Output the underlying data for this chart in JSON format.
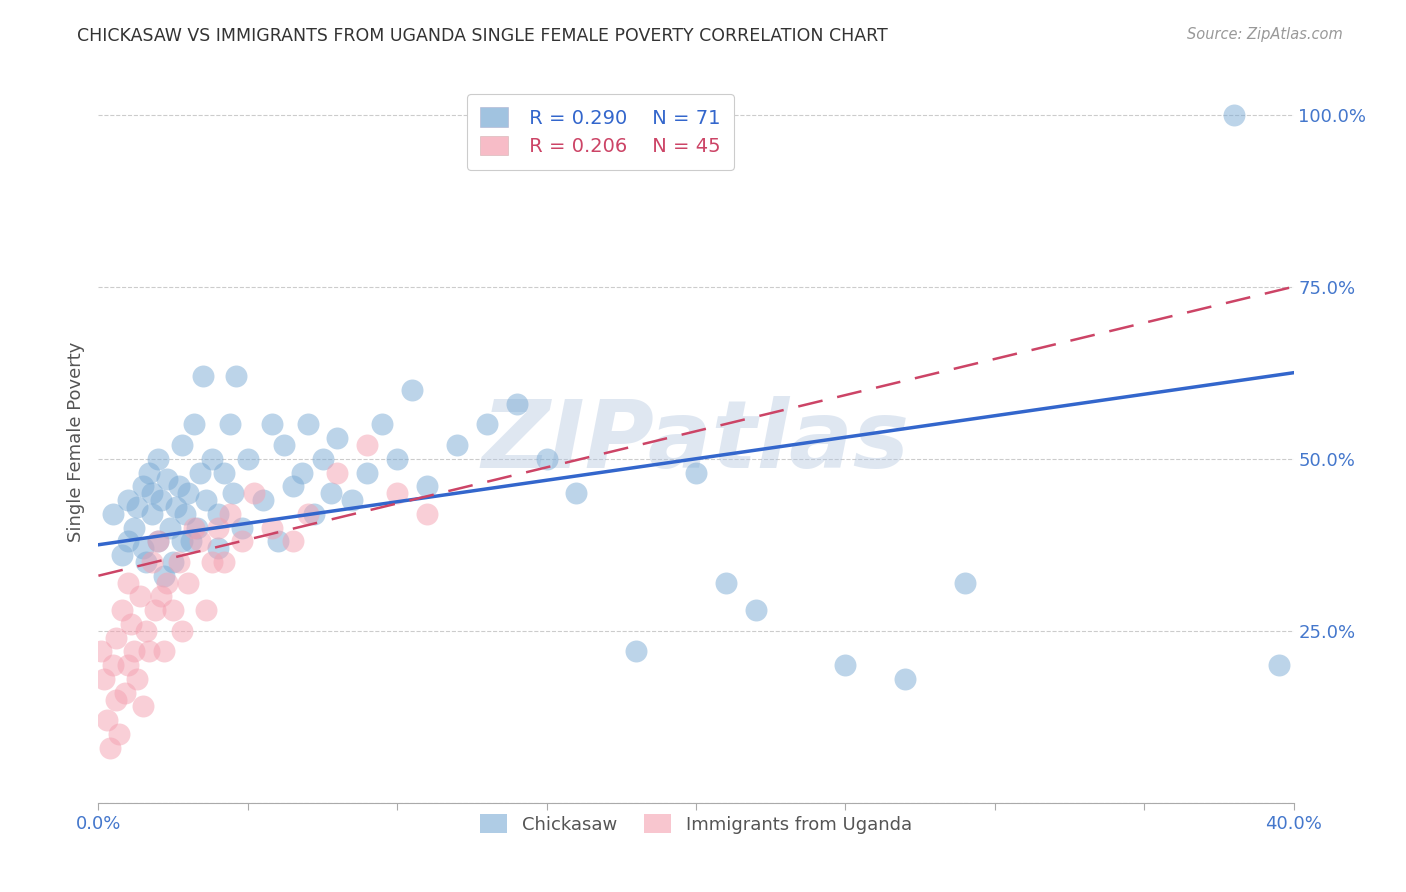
{
  "title": "CHICKASAW VS IMMIGRANTS FROM UGANDA SINGLE FEMALE POVERTY CORRELATION CHART",
  "source": "Source: ZipAtlas.com",
  "ylabel": "Single Female Poverty",
  "xlim": [
    0.0,
    0.4
  ],
  "ylim": [
    0.0,
    1.05
  ],
  "ytick_positions": [
    0.0,
    0.25,
    0.5,
    0.75,
    1.0
  ],
  "ytick_labels": [
    "",
    "25.0%",
    "50.0%",
    "75.0%",
    "100.0%"
  ],
  "legend_r1": "R = 0.290",
  "legend_n1": "N = 71",
  "legend_r2": "R = 0.206",
  "legend_n2": "N = 45",
  "chickasaw_color": "#7aaad4",
  "uganda_color": "#f4a0b0",
  "trendline_blue_color": "#3366cc",
  "trendline_pink_color": "#cc4466",
  "watermark": "ZIPatlas",
  "watermark_color": "#b0c4de",
  "title_color": "#333333",
  "axis_label_color": "#555555",
  "tick_label_color": "#4477cc",
  "grid_color": "#cccccc",
  "chickasaw_x": [
    0.005,
    0.008,
    0.01,
    0.01,
    0.012,
    0.013,
    0.015,
    0.015,
    0.016,
    0.017,
    0.018,
    0.018,
    0.02,
    0.02,
    0.021,
    0.022,
    0.023,
    0.024,
    0.025,
    0.026,
    0.027,
    0.028,
    0.028,
    0.029,
    0.03,
    0.031,
    0.032,
    0.033,
    0.034,
    0.035,
    0.036,
    0.038,
    0.04,
    0.04,
    0.042,
    0.044,
    0.045,
    0.046,
    0.048,
    0.05,
    0.055,
    0.058,
    0.06,
    0.062,
    0.065,
    0.068,
    0.07,
    0.072,
    0.075,
    0.078,
    0.08,
    0.085,
    0.09,
    0.095,
    0.1,
    0.105,
    0.11,
    0.12,
    0.13,
    0.14,
    0.15,
    0.16,
    0.18,
    0.2,
    0.21,
    0.22,
    0.25,
    0.27,
    0.29,
    0.38,
    0.395
  ],
  "chickasaw_y": [
    0.42,
    0.36,
    0.44,
    0.38,
    0.4,
    0.43,
    0.37,
    0.46,
    0.35,
    0.48,
    0.42,
    0.45,
    0.38,
    0.5,
    0.44,
    0.33,
    0.47,
    0.4,
    0.35,
    0.43,
    0.46,
    0.38,
    0.52,
    0.42,
    0.45,
    0.38,
    0.55,
    0.4,
    0.48,
    0.62,
    0.44,
    0.5,
    0.37,
    0.42,
    0.48,
    0.55,
    0.45,
    0.62,
    0.4,
    0.5,
    0.44,
    0.55,
    0.38,
    0.52,
    0.46,
    0.48,
    0.55,
    0.42,
    0.5,
    0.45,
    0.53,
    0.44,
    0.48,
    0.55,
    0.5,
    0.6,
    0.46,
    0.52,
    0.55,
    0.58,
    0.5,
    0.45,
    0.22,
    0.48,
    0.32,
    0.28,
    0.2,
    0.18,
    0.32,
    1.0,
    0.2
  ],
  "uganda_x": [
    0.001,
    0.002,
    0.003,
    0.004,
    0.005,
    0.006,
    0.006,
    0.007,
    0.008,
    0.009,
    0.01,
    0.01,
    0.011,
    0.012,
    0.013,
    0.014,
    0.015,
    0.016,
    0.017,
    0.018,
    0.019,
    0.02,
    0.021,
    0.022,
    0.023,
    0.025,
    0.027,
    0.028,
    0.03,
    0.032,
    0.034,
    0.036,
    0.038,
    0.04,
    0.042,
    0.044,
    0.048,
    0.052,
    0.058,
    0.065,
    0.07,
    0.08,
    0.09,
    0.1,
    0.11
  ],
  "uganda_y": [
    0.22,
    0.18,
    0.12,
    0.08,
    0.2,
    0.15,
    0.24,
    0.1,
    0.28,
    0.16,
    0.32,
    0.2,
    0.26,
    0.22,
    0.18,
    0.3,
    0.14,
    0.25,
    0.22,
    0.35,
    0.28,
    0.38,
    0.3,
    0.22,
    0.32,
    0.28,
    0.35,
    0.25,
    0.32,
    0.4,
    0.38,
    0.28,
    0.35,
    0.4,
    0.35,
    0.42,
    0.38,
    0.45,
    0.4,
    0.38,
    0.42,
    0.48,
    0.52,
    0.45,
    0.42
  ],
  "background_color": "#ffffff"
}
